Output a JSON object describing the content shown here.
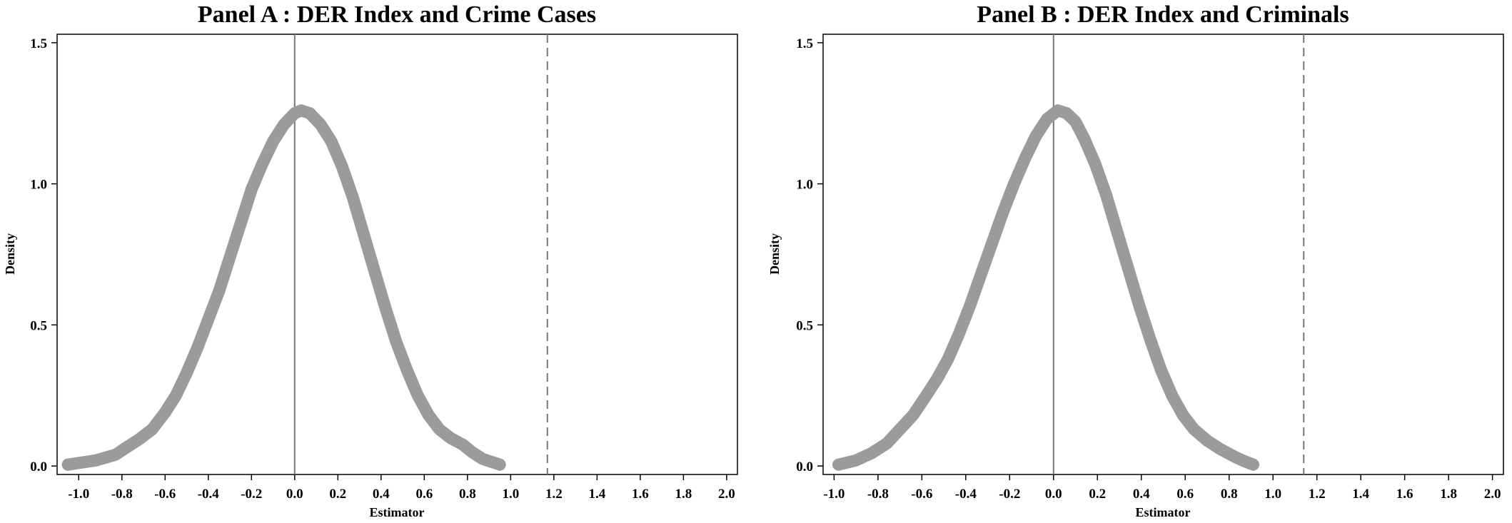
{
  "chart_data": [
    {
      "type": "scatter",
      "title": "Panel A : DER Index and Crime Cases",
      "xlabel": "Estimator",
      "ylabel": "Density",
      "xlim": [
        -1.1,
        2.05
      ],
      "ylim": [
        -0.03,
        1.53
      ],
      "xticks": [
        "-1.0",
        "-0.8",
        "-0.6",
        "-0.4",
        "-0.2",
        "0.0",
        "0.2",
        "0.4",
        "0.6",
        "0.8",
        "1.0",
        "1.2",
        "1.4",
        "1.6",
        "1.8",
        "2.0"
      ],
      "yticks": [
        "0.0",
        "0.5",
        "1.0",
        "1.5"
      ],
      "reference_lines": {
        "zero": 0.0,
        "baseline_estimate": 1.17
      },
      "marker_color": "#9b9b9b",
      "density_points": [
        {
          "x": -1.05,
          "y": 0.005
        },
        {
          "x": -0.92,
          "y": 0.02
        },
        {
          "x": -0.83,
          "y": 0.04
        },
        {
          "x": -0.78,
          "y": 0.065
        },
        {
          "x": -0.72,
          "y": 0.095
        },
        {
          "x": -0.66,
          "y": 0.13
        },
        {
          "x": -0.6,
          "y": 0.19
        },
        {
          "x": -0.55,
          "y": 0.25
        },
        {
          "x": -0.5,
          "y": 0.33
        },
        {
          "x": -0.45,
          "y": 0.42
        },
        {
          "x": -0.4,
          "y": 0.52
        },
        {
          "x": -0.35,
          "y": 0.62
        },
        {
          "x": -0.3,
          "y": 0.74
        },
        {
          "x": -0.25,
          "y": 0.86
        },
        {
          "x": -0.2,
          "y": 0.98
        },
        {
          "x": -0.15,
          "y": 1.07
        },
        {
          "x": -0.1,
          "y": 1.15
        },
        {
          "x": -0.05,
          "y": 1.21
        },
        {
          "x": 0.0,
          "y": 1.25
        },
        {
          "x": 0.03,
          "y": 1.26
        },
        {
          "x": 0.07,
          "y": 1.25
        },
        {
          "x": 0.12,
          "y": 1.21
        },
        {
          "x": 0.17,
          "y": 1.15
        },
        {
          "x": 0.22,
          "y": 1.06
        },
        {
          "x": 0.27,
          "y": 0.95
        },
        {
          "x": 0.32,
          "y": 0.82
        },
        {
          "x": 0.37,
          "y": 0.69
        },
        {
          "x": 0.42,
          "y": 0.56
        },
        {
          "x": 0.47,
          "y": 0.44
        },
        {
          "x": 0.52,
          "y": 0.34
        },
        {
          "x": 0.57,
          "y": 0.25
        },
        {
          "x": 0.62,
          "y": 0.18
        },
        {
          "x": 0.67,
          "y": 0.13
        },
        {
          "x": 0.72,
          "y": 0.1
        },
        {
          "x": 0.78,
          "y": 0.075
        },
        {
          "x": 0.82,
          "y": 0.05
        },
        {
          "x": 0.87,
          "y": 0.025
        },
        {
          "x": 0.95,
          "y": 0.005
        }
      ]
    },
    {
      "type": "scatter",
      "title": "Panel B : DER Index and Criminals",
      "xlabel": "Estimator",
      "ylabel": "Density",
      "xlim": [
        -1.05,
        2.05
      ],
      "ylim": [
        -0.03,
        1.53
      ],
      "xticks": [
        "-1.0",
        "-0.8",
        "-0.6",
        "-0.4",
        "-0.2",
        "0.0",
        "0.2",
        "0.4",
        "0.6",
        "0.8",
        "1.0",
        "1.2",
        "1.4",
        "1.6",
        "1.8",
        "2.0"
      ],
      "yticks": [
        "0.0",
        "0.5",
        "1.0",
        "1.5"
      ],
      "reference_lines": {
        "zero": 0.0,
        "baseline_estimate": 1.14
      },
      "marker_color": "#9b9b9b",
      "density_points": [
        {
          "x": -0.98,
          "y": 0.005
        },
        {
          "x": -0.9,
          "y": 0.02
        },
        {
          "x": -0.83,
          "y": 0.045
        },
        {
          "x": -0.76,
          "y": 0.08
        },
        {
          "x": -0.7,
          "y": 0.13
        },
        {
          "x": -0.64,
          "y": 0.18
        },
        {
          "x": -0.58,
          "y": 0.25
        },
        {
          "x": -0.53,
          "y": 0.31
        },
        {
          "x": -0.48,
          "y": 0.38
        },
        {
          "x": -0.43,
          "y": 0.47
        },
        {
          "x": -0.38,
          "y": 0.57
        },
        {
          "x": -0.33,
          "y": 0.68
        },
        {
          "x": -0.28,
          "y": 0.79
        },
        {
          "x": -0.23,
          "y": 0.9
        },
        {
          "x": -0.18,
          "y": 1.0
        },
        {
          "x": -0.13,
          "y": 1.09
        },
        {
          "x": -0.08,
          "y": 1.17
        },
        {
          "x": -0.03,
          "y": 1.23
        },
        {
          "x": 0.02,
          "y": 1.26
        },
        {
          "x": 0.06,
          "y": 1.25
        },
        {
          "x": 0.1,
          "y": 1.22
        },
        {
          "x": 0.14,
          "y": 1.16
        },
        {
          "x": 0.19,
          "y": 1.07
        },
        {
          "x": 0.24,
          "y": 0.96
        },
        {
          "x": 0.29,
          "y": 0.83
        },
        {
          "x": 0.34,
          "y": 0.7
        },
        {
          "x": 0.39,
          "y": 0.57
        },
        {
          "x": 0.44,
          "y": 0.45
        },
        {
          "x": 0.49,
          "y": 0.34
        },
        {
          "x": 0.54,
          "y": 0.25
        },
        {
          "x": 0.59,
          "y": 0.18
        },
        {
          "x": 0.64,
          "y": 0.13
        },
        {
          "x": 0.7,
          "y": 0.09
        },
        {
          "x": 0.76,
          "y": 0.06
        },
        {
          "x": 0.82,
          "y": 0.035
        },
        {
          "x": 0.86,
          "y": 0.02
        },
        {
          "x": 0.91,
          "y": 0.005
        }
      ]
    }
  ]
}
